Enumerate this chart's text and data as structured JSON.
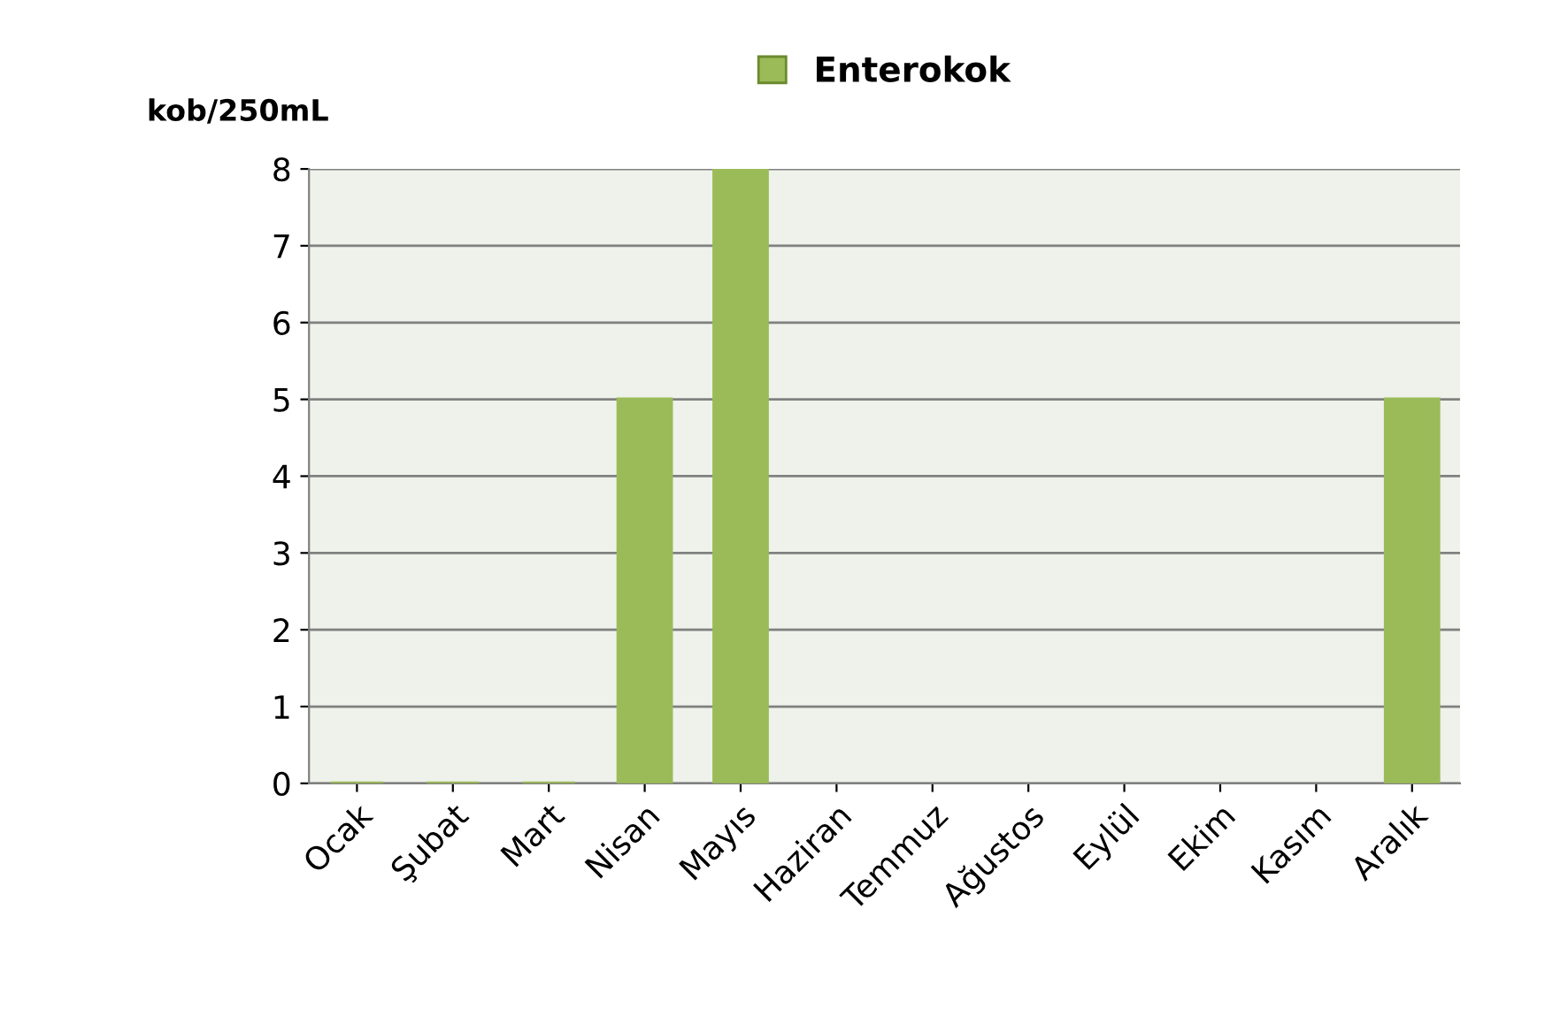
{
  "chart_data": {
    "type": "bar",
    "ylabel": "kob/250mL",
    "categories": [
      "Ocak",
      "Şubat",
      "Mart",
      "Nisan",
      "Mayıs",
      "Haziran",
      "Temmuz",
      "Ağustos",
      "Eylül",
      "Ekim",
      "Kasım",
      "Aralık"
    ],
    "series": [
      {
        "name": "Enterokok",
        "color": "#9bbb59",
        "values": [
          0,
          0,
          0,
          5,
          8,
          null,
          null,
          null,
          null,
          null,
          null,
          5
        ]
      }
    ],
    "ylim": [
      0,
      8
    ],
    "yticks": [
      0,
      1,
      2,
      3,
      4,
      5,
      6,
      7,
      8
    ],
    "grid": "y",
    "legend": "top"
  }
}
